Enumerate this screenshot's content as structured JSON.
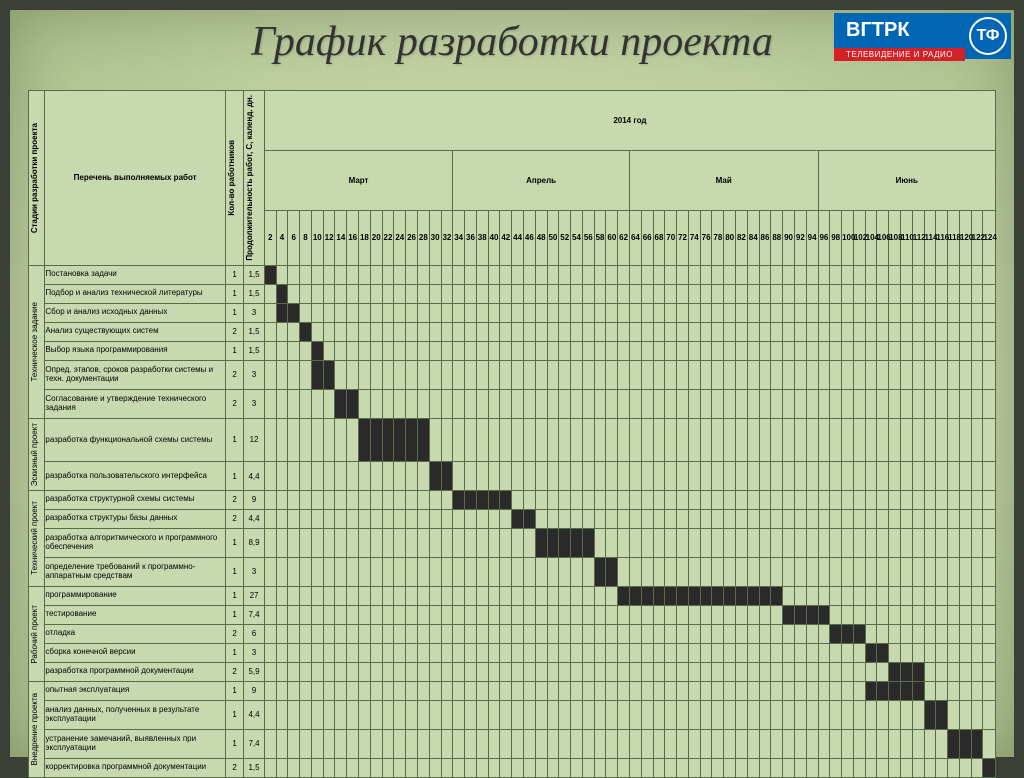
{
  "title": "График разработки проекта",
  "logo": {
    "main": "ВГТРК",
    "sub": "ТЕЛЕВИДЕНИЕ И РАДИО",
    "tf": "ТФ"
  },
  "headers": {
    "stage": "Стадии разработки проекта",
    "tasks": "Перечень выполняемых работ",
    "workers": "Кол-во работников",
    "duration": "Продолжительность работ, С, календ. дн.",
    "year": "2014 год"
  },
  "months": [
    {
      "name": "Март",
      "span": 16
    },
    {
      "name": "Апрель",
      "span": 15
    },
    {
      "name": "Май",
      "span": 16
    },
    {
      "name": "Июнь",
      "span": 15
    }
  ],
  "days": [
    2,
    4,
    6,
    8,
    10,
    12,
    14,
    16,
    18,
    20,
    22,
    24,
    26,
    28,
    30,
    32,
    34,
    36,
    38,
    40,
    42,
    44,
    46,
    48,
    50,
    52,
    54,
    56,
    58,
    60,
    62,
    64,
    66,
    68,
    70,
    72,
    74,
    76,
    78,
    80,
    82,
    84,
    86,
    88,
    90,
    92,
    94,
    96,
    98,
    100,
    102,
    104,
    106,
    108,
    110,
    112,
    114,
    116,
    118,
    120,
    122,
    124
  ],
  "day_count": 62,
  "stages": [
    {
      "label": "Техническое задание",
      "row_span": 7
    },
    {
      "label": "Эскизный проект",
      "row_span": 2
    },
    {
      "label": "Технический проект",
      "row_span": 4
    },
    {
      "label": "Рабочий проект",
      "row_span": 5
    },
    {
      "label": "Внедрение проекта",
      "row_span": 4
    }
  ],
  "tasks": [
    {
      "stage": 0,
      "name": "Постановка задачи",
      "workers": 1,
      "duration": "1,5",
      "start": 0,
      "len": 1,
      "h": 1
    },
    {
      "stage": 0,
      "name": "Подбор и анализ технической литературы",
      "workers": 1,
      "duration": "1,5",
      "start": 1,
      "len": 1,
      "h": 1
    },
    {
      "stage": 0,
      "name": "Сбор и анализ исходных данных",
      "workers": 1,
      "duration": "3",
      "start": 1,
      "len": 2,
      "h": 1
    },
    {
      "stage": 0,
      "name": "Анализ существующих систем",
      "workers": 2,
      "duration": "1,5",
      "start": 3,
      "len": 1,
      "h": 1
    },
    {
      "stage": 0,
      "name": "Выбор языка программирования",
      "workers": 1,
      "duration": "1,5",
      "start": 4,
      "len": 1,
      "h": 1
    },
    {
      "stage": 0,
      "name": "Опред. этапов, сроков разработки системы и техн. документации",
      "workers": 2,
      "duration": "3",
      "start": 4,
      "len": 2,
      "h": 2
    },
    {
      "stage": 0,
      "name": "Согласование и утверждение технического задания",
      "workers": 2,
      "duration": "3",
      "start": 6,
      "len": 2,
      "h": 2
    },
    {
      "stage": 1,
      "name": "разработка функциональной схемы системы",
      "workers": 1,
      "duration": "12",
      "start": 8,
      "len": 6,
      "h": 2
    },
    {
      "stage": 1,
      "name": "разработка пользовательского интерфейса",
      "workers": 1,
      "duration": "4,4",
      "start": 14,
      "len": 2,
      "h": 1
    },
    {
      "stage": 2,
      "name": "разработка структурной схемы системы",
      "workers": 2,
      "duration": "9",
      "start": 16,
      "len": 5,
      "h": 1
    },
    {
      "stage": 2,
      "name": "разработка структуры базы данных",
      "workers": 2,
      "duration": "4,4",
      "start": 21,
      "len": 2,
      "h": 1
    },
    {
      "stage": 2,
      "name": "разработка алгоритмического и программного обеспечения",
      "workers": 1,
      "duration": "8,9",
      "start": 23,
      "len": 5,
      "h": 2
    },
    {
      "stage": 2,
      "name": "определение требований к программно-аппаратным средствам",
      "workers": 1,
      "duration": "3",
      "start": 28,
      "len": 2,
      "h": 2
    },
    {
      "stage": 3,
      "name": "программирование",
      "workers": 1,
      "duration": "27",
      "start": 30,
      "len": 14,
      "h": 1
    },
    {
      "stage": 3,
      "name": "тестирование",
      "workers": 1,
      "duration": "7,4",
      "start": 44,
      "len": 4,
      "h": 1
    },
    {
      "stage": 3,
      "name": "отладка",
      "workers": 2,
      "duration": "6",
      "start": 48,
      "len": 3,
      "h": 1
    },
    {
      "stage": 3,
      "name": "сборка конечной версии",
      "workers": 1,
      "duration": "3",
      "start": 51,
      "len": 2,
      "h": 1
    },
    {
      "stage": 3,
      "name": "разработка программной документации",
      "workers": 2,
      "duration": "5,9",
      "start": 53,
      "len": 3,
      "h": 1
    },
    {
      "stage": 4,
      "name": "опытная эксплуатация",
      "workers": 1,
      "duration": "9",
      "start": 51,
      "len": 5,
      "h": 1
    },
    {
      "stage": 4,
      "name": "анализ данных, полученных в результате эксплуатации",
      "workers": 1,
      "duration": "4,4",
      "start": 56,
      "len": 2,
      "h": 2
    },
    {
      "stage": 4,
      "name": "устранение замечаний, выявленных при эксплуатации",
      "workers": 1,
      "duration": "7,4",
      "start": 58,
      "len": 3,
      "h": 2
    },
    {
      "stage": 4,
      "name": "корректировка программной документации",
      "workers": 2,
      "duration": "1,5",
      "start": 61,
      "len": 1,
      "h": 1
    }
  ],
  "colors": {
    "bar": "#2a2a2a",
    "grid": "#5a6b48",
    "table_bg": "#c8d9b0"
  }
}
